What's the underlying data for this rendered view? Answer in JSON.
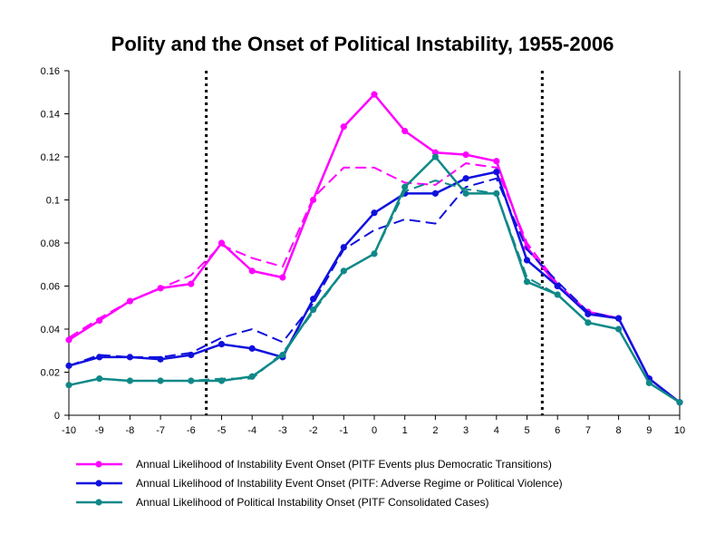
{
  "chart_data": {
    "type": "line",
    "title": "Polity and the Onset of Political Instability, 1955-2006",
    "x": [
      -10,
      -9,
      -8,
      -7,
      -6,
      -5,
      -4,
      -3,
      -2,
      -1,
      0,
      1,
      2,
      3,
      4,
      5,
      6,
      7,
      8,
      9,
      10
    ],
    "xticks": [
      "-10",
      "-9",
      "-8",
      "-7",
      "-6",
      "-5",
      "-4",
      "-3",
      "-2",
      "-1",
      "0",
      "1",
      "2",
      "3",
      "4",
      "5",
      "6",
      "7",
      "8",
      "9",
      "10"
    ],
    "yticks": [
      "0",
      "0.02",
      "0.04",
      "0.06",
      "0.08",
      "0.1",
      "0.12",
      "0.14",
      "0.16"
    ],
    "ylim": [
      0,
      0.16
    ],
    "xlim": [
      -10,
      10
    ],
    "vlines": [
      -5.5,
      5.5
    ],
    "legend_position": "bottom",
    "series": [
      {
        "name": "Annual Likelihood of Instability Event Onset (PITF Events plus Democratic Transitions)",
        "color": "#ff00ff",
        "values": [
          0.035,
          0.044,
          0.053,
          0.059,
          0.061,
          0.08,
          0.067,
          0.064,
          0.1,
          0.134,
          0.149,
          0.132,
          0.122,
          0.121,
          0.118,
          0.078,
          0.06,
          0.048,
          0.045,
          0.017,
          0.006
        ],
        "trend": [
          0.036,
          0.045,
          0.053,
          0.059,
          0.065,
          0.079,
          0.073,
          0.069,
          0.101,
          0.115,
          0.115,
          0.108,
          0.107,
          0.117,
          0.115,
          0.08,
          0.061,
          0.048,
          0.045,
          0.017,
          0.006
        ]
      },
      {
        "name": "Annual Likelihood of Instability Event Onset (PITF: Adverse Regime or Political Violence)",
        "color": "#1010dd",
        "values": [
          0.023,
          0.027,
          0.027,
          0.026,
          0.028,
          0.033,
          0.031,
          0.027,
          0.054,
          0.078,
          0.094,
          0.103,
          0.103,
          0.11,
          0.113,
          0.072,
          0.06,
          0.047,
          0.045,
          0.017,
          0.006
        ],
        "trend": [
          0.023,
          0.028,
          0.027,
          0.027,
          0.029,
          0.036,
          0.04,
          0.034,
          0.052,
          0.077,
          0.086,
          0.091,
          0.089,
          0.106,
          0.11,
          0.077,
          0.062,
          0.048,
          0.045,
          0.017,
          0.006
        ]
      },
      {
        "name": "Annual Likelihood of Political Instability Onset (PITF Consolidated Cases)",
        "color": "#108888",
        "values": [
          0.014,
          0.017,
          0.016,
          0.016,
          0.016,
          0.016,
          0.018,
          0.028,
          0.049,
          0.067,
          0.075,
          0.106,
          0.12,
          0.103,
          0.103,
          0.062,
          0.056,
          0.043,
          0.04,
          0.015,
          0.006
        ],
        "trend": [
          0.014,
          0.017,
          0.016,
          0.016,
          0.016,
          0.017,
          0.017,
          0.029,
          0.048,
          0.067,
          0.075,
          0.104,
          0.109,
          0.105,
          0.103,
          0.064,
          0.056,
          0.043,
          0.04,
          0.015,
          0.006
        ]
      }
    ]
  }
}
